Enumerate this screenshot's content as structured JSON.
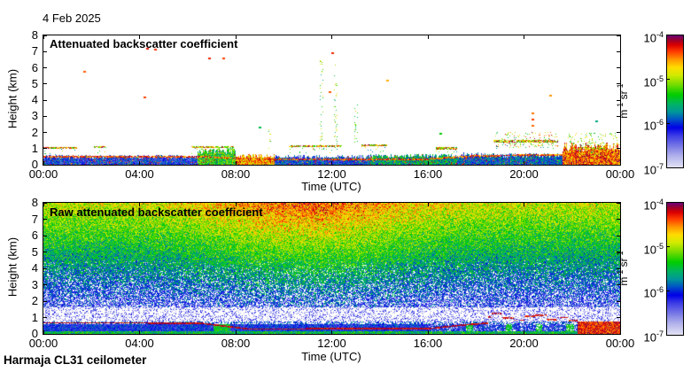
{
  "page": {
    "date_label": "4 Feb 2025",
    "footer_label": "Harmaja CL31 ceilometer",
    "background": "#ffffff"
  },
  "colormap": {
    "stops": [
      [
        0.0,
        "#e0e0f4"
      ],
      [
        0.08,
        "#b4b4ec"
      ],
      [
        0.16,
        "#7878e6"
      ],
      [
        0.24,
        "#3c3ce6"
      ],
      [
        0.3,
        "#0000e6"
      ],
      [
        0.36,
        "#0050c8"
      ],
      [
        0.42,
        "#00969b"
      ],
      [
        0.48,
        "#00b464"
      ],
      [
        0.55,
        "#00cd00"
      ],
      [
        0.63,
        "#78dc00"
      ],
      [
        0.7,
        "#d2eb00"
      ],
      [
        0.76,
        "#ffdc00"
      ],
      [
        0.82,
        "#ff9600"
      ],
      [
        0.88,
        "#ff3c00"
      ],
      [
        0.93,
        "#dc0000"
      ],
      [
        0.965,
        "#a00028"
      ],
      [
        1.0,
        "#700070"
      ]
    ]
  },
  "chart_data": [
    {
      "type": "heatmap",
      "title": "Attenuated backscatter coefficient",
      "xlabel": "Time (UTC)",
      "ylabel": "Height (km)",
      "x_ticks": [
        "00:00",
        "04:00",
        "08:00",
        "12:00",
        "16:00",
        "20:00",
        "00:00"
      ],
      "x_range_hours": [
        0,
        24
      ],
      "y_ticks": [
        "0",
        "1",
        "2",
        "3",
        "4",
        "5",
        "6",
        "7",
        "8"
      ],
      "y_range_km": [
        0,
        8
      ],
      "colorbar": {
        "tick_labels": [
          "10^-4^",
          "10^-5^",
          "10^-6^",
          "10^-7^"
        ],
        "unit": "m^-1^ sr^-1^",
        "scale": "log",
        "range": [
          1e-07,
          0.0001
        ]
      },
      "summary": "Boundary-layer aerosol below ~1 km all day; speckled strong-return layer near 0.3-0.6 km; broken cloud/aerosol layers near 1-1.5 km; strong surface returns 08:00-09:30 and 21:30-24:00; sparse isolated echoes aloft.",
      "render": {
        "surface_segments": [
          {
            "t": [
              0,
              6.4
            ],
            "v": 0.3,
            "h": 0.5
          },
          {
            "t": [
              6.4,
              8.0
            ],
            "v": 0.55,
            "h": 0.85
          },
          {
            "t": [
              8.0,
              9.6
            ],
            "v": 0.8,
            "h": 0.55
          },
          {
            "t": [
              9.6,
              13.6
            ],
            "v": 0.33,
            "h": 0.5
          },
          {
            "t": [
              13.6,
              17.2
            ],
            "v": 0.47,
            "h": 0.55
          },
          {
            "t": [
              17.2,
              21.6
            ],
            "v": 0.36,
            "h": 0.6
          },
          {
            "t": [
              21.6,
              24.01
            ],
            "v": 0.85,
            "h": 1.1
          }
        ],
        "bl_line": [
          [
            0,
            0.5
          ],
          [
            6.5,
            0.5
          ],
          [
            9,
            0.33
          ],
          [
            16,
            0.35
          ],
          [
            18,
            0.55
          ],
          [
            21.5,
            0.62
          ],
          [
            24,
            0.62
          ]
        ],
        "clouds": [
          {
            "t": [
              0,
              1.4
            ],
            "km": 1.05
          },
          {
            "t": [
              2.1,
              2.6
            ],
            "km": 1.1
          },
          {
            "t": [
              6.15,
              7.9
            ],
            "km": 1.1
          },
          {
            "t": [
              10.2,
              12.4
            ],
            "km": 1.15
          },
          {
            "t": [
              13.2,
              14.3
            ],
            "km": 1.2
          },
          {
            "t": [
              16.3,
              17.2
            ],
            "km": 1.0
          },
          {
            "t": [
              18.7,
              21.4
            ],
            "km": 1.45
          },
          {
            "t": [
              22.3,
              23.4
            ],
            "km": 1.0
          }
        ],
        "columns": [
          {
            "t": 11.55,
            "km": [
              1.2,
              7.0
            ]
          },
          {
            "t": 12.15,
            "km": [
              1.2,
              6.2
            ]
          },
          {
            "t": 13.0,
            "km": [
              1.0,
              4.0
            ]
          },
          {
            "t": 9.4,
            "km": [
              1.0,
              2.4
            ]
          }
        ],
        "dots": [
          {
            "t": 1.7,
            "km": 5.75,
            "v": 0.86
          },
          {
            "t": 4.3,
            "km": 7.2,
            "v": 0.92
          },
          {
            "t": 4.65,
            "km": 7.1,
            "v": 0.9
          },
          {
            "t": 4.2,
            "km": 4.15,
            "v": 0.88
          },
          {
            "t": 6.9,
            "km": 6.6,
            "v": 0.9
          },
          {
            "t": 7.5,
            "km": 6.55,
            "v": 0.88
          },
          {
            "t": 12.0,
            "km": 6.9,
            "v": 0.9
          },
          {
            "t": 11.9,
            "km": 4.5,
            "v": 0.86
          },
          {
            "t": 14.3,
            "km": 5.2,
            "v": 0.8
          },
          {
            "t": 20.35,
            "km": 2.4,
            "v": 0.85
          },
          {
            "t": 20.35,
            "km": 2.8,
            "v": 0.88
          },
          {
            "t": 20.35,
            "km": 3.2,
            "v": 0.84
          },
          {
            "t": 23.0,
            "km": 2.7,
            "v": 0.45
          },
          {
            "t": 16.5,
            "km": 1.9,
            "v": 0.55
          },
          {
            "t": 9.0,
            "km": 2.3,
            "v": 0.5
          },
          {
            "t": 21.1,
            "km": 4.3,
            "v": 0.82
          }
        ]
      }
    },
    {
      "type": "heatmap",
      "title": "Raw attenuated backscatter coefficient",
      "xlabel": "Time (UTC)",
      "ylabel": "Height (km)",
      "x_ticks": [
        "00:00",
        "04:00",
        "08:00",
        "12:00",
        "16:00",
        "20:00",
        "00:00"
      ],
      "x_range_hours": [
        0,
        24
      ],
      "y_ticks": [
        "0",
        "1",
        "2",
        "3",
        "4",
        "5",
        "6",
        "7",
        "8"
      ],
      "y_range_km": [
        0,
        8
      ],
      "colorbar": {
        "tick_labels": [
          "10^-4^",
          "10^-5^",
          "10^-6^",
          "10^-7^"
        ],
        "unit": "m^-1^ sr^-1^",
        "scale": "log",
        "range": [
          1e-07,
          0.0001
        ]
      },
      "summary": "Raw signal dominated by noise increasing with range; daytime solar background boosts apparent values aloft ~07:00-15:00 (orange/red at 5-8 km); pale low-signal band 0.8-1.6 km; strong-return line near 0.65 km descending to ~0.3 km by day; blue sub-layer and green surface strip below; strong red returns 22:00-24:00 near surface.",
      "render": {
        "v_low": 0.26,
        "v_high": 0.7,
        "day_boost": {
          "peak_t": 11,
          "sigma": 4.5,
          "amount": 0.17
        },
        "white_band_km": [
          0.78,
          1.62
        ],
        "bl_line": [
          [
            0,
            0.68
          ],
          [
            6.5,
            0.66
          ],
          [
            8.5,
            0.3
          ],
          [
            16,
            0.32
          ],
          [
            17.5,
            0.55
          ],
          [
            18.5,
            0.66
          ],
          [
            22.2,
            0.7
          ]
        ],
        "segment_zone_t": [
          18.5,
          22.2
        ],
        "blob_t": 22.2,
        "surface_green_km": 0.14,
        "blue_top_km": 0.62,
        "green_columns": [
          [
            7.4,
            0.7
          ],
          [
            17.7,
            0.3
          ],
          [
            19.35,
            0.25
          ],
          [
            20.6,
            0.25
          ],
          [
            21.9,
            0.3
          ]
        ]
      }
    }
  ]
}
